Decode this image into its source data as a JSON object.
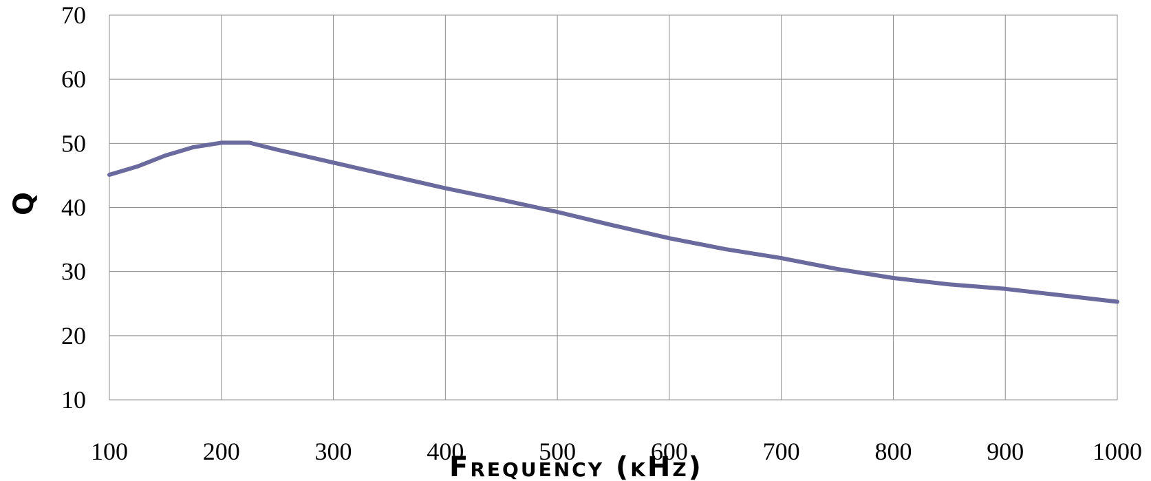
{
  "chart_data": {
    "type": "line",
    "title": "",
    "xlabel": "Frequency (kHz)",
    "ylabel": "Q",
    "xlim": [
      100,
      1000
    ],
    "ylim": [
      10,
      70
    ],
    "x_ticks": [
      100,
      200,
      300,
      400,
      500,
      600,
      700,
      800,
      900,
      1000
    ],
    "y_ticks": [
      10,
      20,
      30,
      40,
      50,
      60,
      70
    ],
    "grid": true,
    "legend": "none",
    "series": [
      {
        "color": "#6a6a9e",
        "x": [
          100,
          125,
          150,
          175,
          200,
          225,
          250,
          300,
          350,
          400,
          450,
          500,
          550,
          600,
          650,
          700,
          750,
          800,
          850,
          900,
          950,
          1000
        ],
        "y": [
          45.1,
          46.4,
          48.1,
          49.4,
          50.1,
          50.1,
          49.0,
          47.0,
          45.0,
          43.0,
          41.2,
          39.3,
          37.2,
          35.2,
          33.5,
          32.1,
          30.4,
          29.0,
          28.0,
          27.3,
          26.3,
          25.3
        ]
      }
    ]
  }
}
